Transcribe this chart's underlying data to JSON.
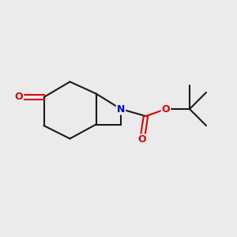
{
  "background_color": "#ebebeb",
  "bond_color": "#1a1a1a",
  "nitrogen_color": "#0000cc",
  "oxygen_color": "#dd0000",
  "label_N": "N",
  "label_O": "O",
  "figsize": [
    3.0,
    3.0
  ],
  "dpi": 100,
  "bond_lw": 1.5,
  "font_size": 9.0
}
